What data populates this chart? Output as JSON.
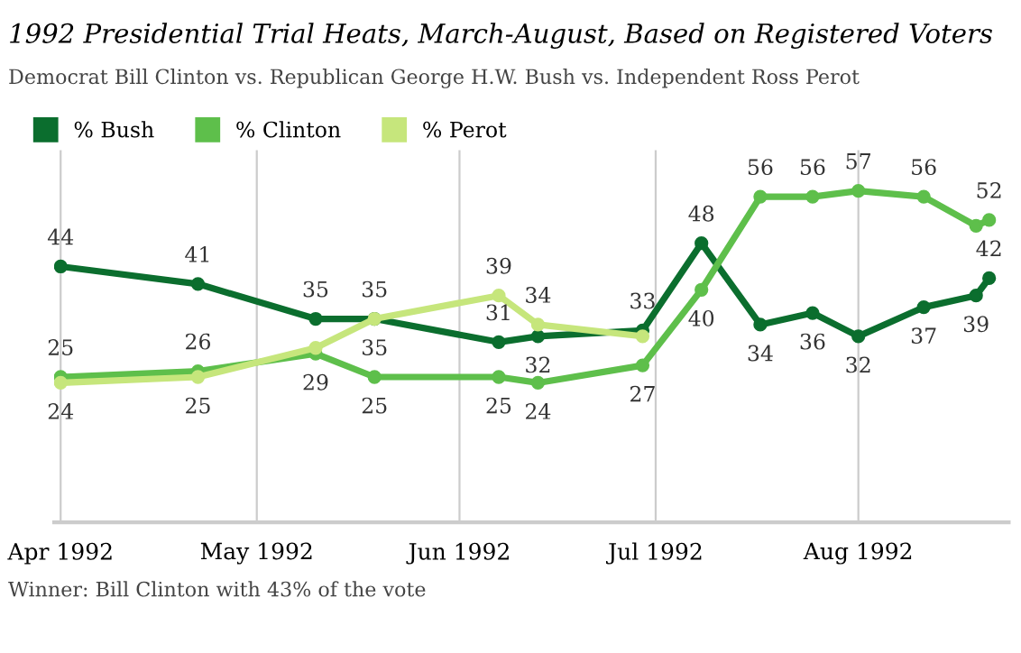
{
  "chart_data": {
    "type": "line",
    "title": "1992 Presidential Trial Heats, March-August, Based on Registered Voters",
    "subtitle": "Democrat Bill Clinton vs. Republican George H.W. Bush vs. Independent Ross Perot",
    "x": [
      "1992-04-01",
      "1992-04-22",
      "1992-05-10",
      "1992-05-19",
      "1992-06-07",
      "1992-06-13",
      "1992-06-29",
      "1992-07-08",
      "1992-07-17",
      "1992-07-25",
      "1992-08-01",
      "1992-08-11",
      "1992-08-19",
      "1992-08-21"
    ],
    "series": [
      {
        "name": "% Bush",
        "color": "#0b6e2e",
        "values": [
          44,
          41,
          35,
          35,
          31,
          32,
          33,
          48,
          34,
          36,
          32,
          37,
          39,
          42
        ],
        "value_labels": [
          "44",
          "41",
          "35",
          "35",
          "31",
          "32",
          "33",
          "48",
          "34",
          "36",
          "32",
          "37",
          "39",
          "42"
        ]
      },
      {
        "name": "% Clinton",
        "color": "#5ebf4b",
        "values": [
          25,
          26,
          29,
          25,
          25,
          24,
          27,
          40,
          56,
          56,
          57,
          56,
          51,
          52
        ],
        "value_labels": [
          "25",
          "26",
          "29",
          "25",
          "25",
          "24",
          "27",
          "40",
          "56",
          "56",
          "57",
          "56",
          null,
          "52"
        ]
      },
      {
        "name": "% Perot",
        "color": "#c6e67c",
        "values": [
          24,
          25,
          30,
          35,
          39,
          34,
          32,
          null,
          null,
          null,
          null,
          null,
          null,
          null
        ],
        "value_labels": [
          "24",
          "25",
          null,
          "35",
          "39",
          "34",
          null,
          null,
          null,
          null,
          null,
          null,
          null,
          null
        ]
      }
    ],
    "xlim": [
      "1992-03-31",
      "1992-08-24"
    ],
    "xticks": [
      {
        "value": "1992-04-01",
        "label": "Apr 1992"
      },
      {
        "value": "1992-05-01",
        "label": "May 1992"
      },
      {
        "value": "1992-06-01",
        "label": "Jun 1992"
      },
      {
        "value": "1992-07-01",
        "label": "Jul 1992"
      },
      {
        "value": "1992-08-01",
        "label": "Aug 1992"
      }
    ],
    "ylim": [
      0,
      64
    ],
    "tick_labels": "x",
    "grid": "x",
    "legend": "top left",
    "marker": "circle",
    "line_style": "solid",
    "annotations": [
      "Winner: Bill Clinton with 43% of the vote"
    ]
  }
}
